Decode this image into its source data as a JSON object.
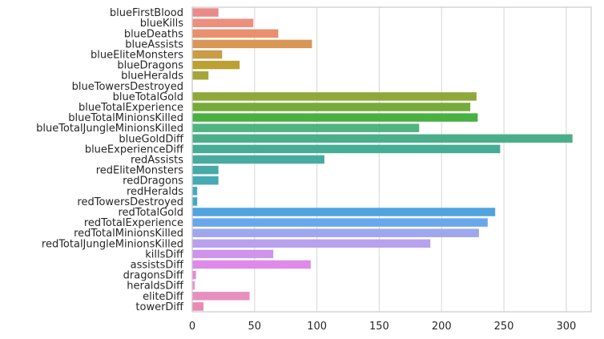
{
  "chart_data": {
    "type": "bar",
    "orientation": "horizontal",
    "categories": [
      "blueFirstBlood",
      "blueKills",
      "blueDeaths",
      "blueAssists",
      "blueEliteMonsters",
      "blueDragons",
      "blueHeralds",
      "blueTowersDestroyed",
      "blueTotalGold",
      "blueTotalExperience",
      "blueTotalMinionsKilled",
      "blueTotalJungleMinionsKilled",
      "blueGoldDiff",
      "blueExperienceDiff",
      "redAssists",
      "redEliteMonsters",
      "redDragons",
      "redHeralds",
      "redTowersDestroyed",
      "redTotalGold",
      "redTotalExperience",
      "redTotalMinionsKilled",
      "redTotalJungleMinionsKilled",
      "killsDiff",
      "assistsDiff",
      "dragonsDiff",
      "heraldsDiff",
      "eliteDiff",
      "towerDiff"
    ],
    "values": [
      21,
      49,
      69,
      96,
      24,
      38,
      13,
      0,
      228,
      223,
      229,
      182,
      305,
      247,
      106,
      21,
      21,
      4,
      4,
      243,
      237,
      230,
      191,
      65,
      95,
      3,
      2,
      46,
      9
    ],
    "colors": [
      "#e98a8b",
      "#ec8f7e",
      "#e9906e",
      "#d99654",
      "#c99c47",
      "#bba032",
      "#a6a53a",
      "#a0a93a",
      "#8fa83a",
      "#74ab3b",
      "#48b142",
      "#4fb480",
      "#4aae8b",
      "#45ad95",
      "#47ac9f",
      "#46aaa9",
      "#45aab2",
      "#44aabb",
      "#48a6c4",
      "#4fa4df",
      "#6aa7ea",
      "#9ea7ee",
      "#b8a1ed",
      "#cd94ea",
      "#df8ae9",
      "#e58ad8",
      "#e990cb",
      "#e78fbe",
      "#e88ab2"
    ],
    "xlim": [
      0,
      320
    ],
    "xticks": [
      0,
      50,
      100,
      150,
      200,
      250,
      300
    ],
    "xlabel": "",
    "ylabel": "",
    "title": "",
    "grid": "vertical"
  }
}
